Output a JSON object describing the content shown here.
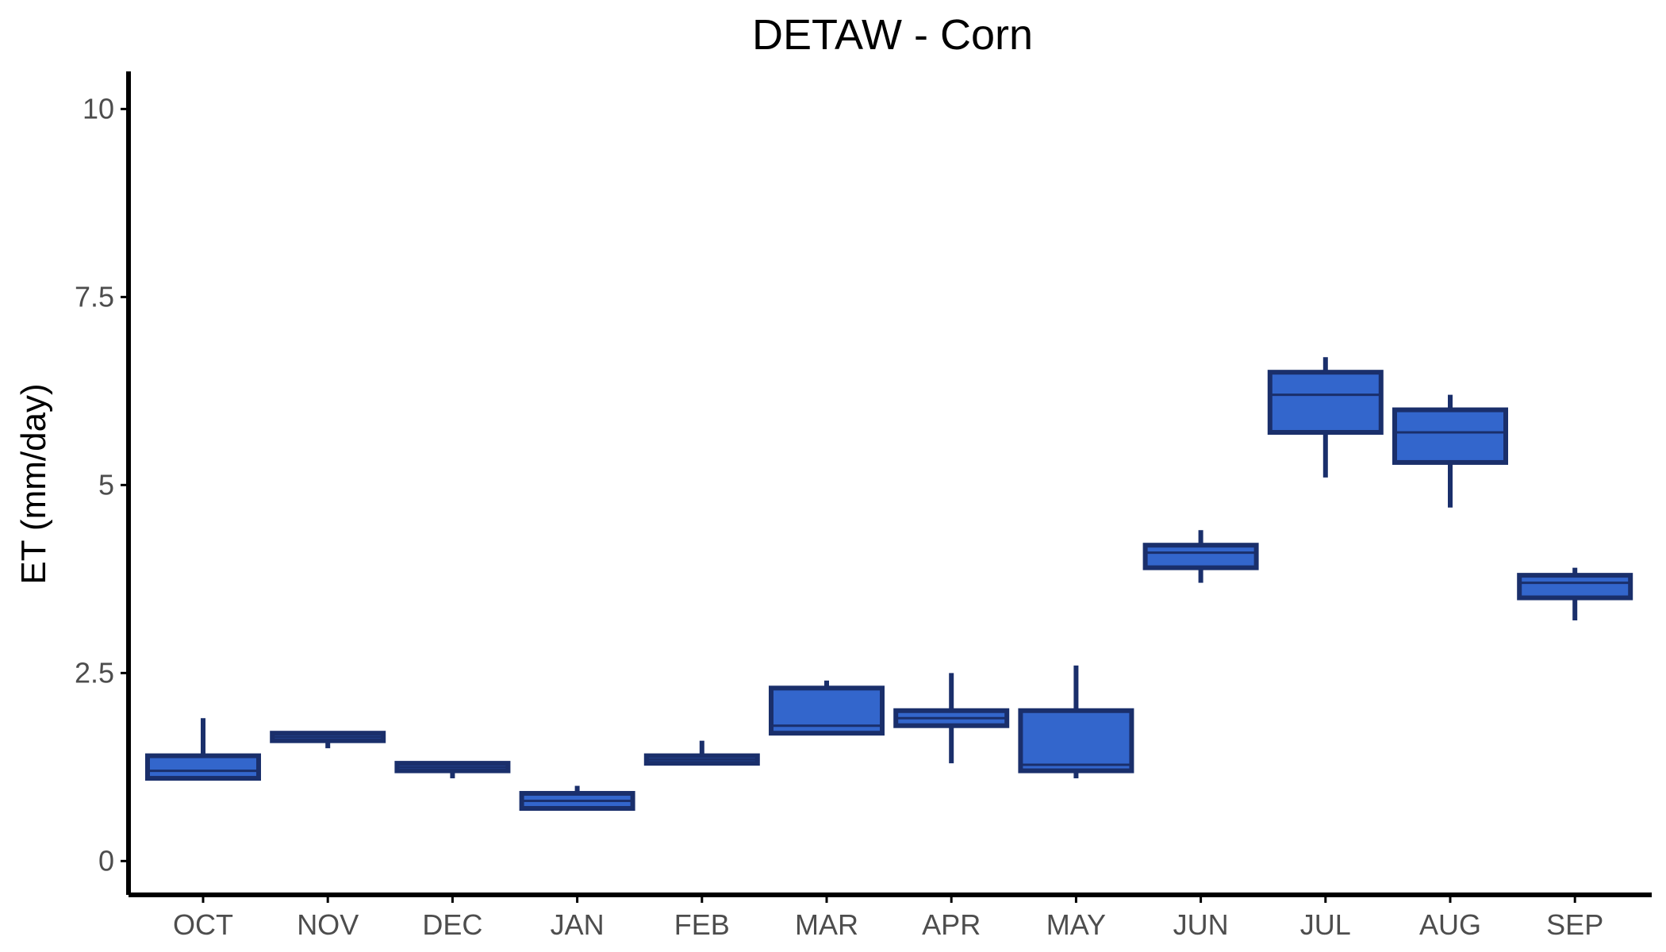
{
  "chart_data": {
    "type": "box",
    "title": "DETAW - Corn",
    "xlabel": "",
    "ylabel": "ET (mm/day)",
    "ylim": [
      -0.45,
      10.5
    ],
    "yticks": [
      {
        "value": 0,
        "label": "0"
      },
      {
        "value": 2.5,
        "label": "2.5"
      },
      {
        "value": 5,
        "label": "5"
      },
      {
        "value": 7.5,
        "label": "7.5"
      },
      {
        "value": 10,
        "label": "10"
      }
    ],
    "grid": false,
    "legend": "none",
    "colors": {
      "box_fill": "#3366cc",
      "box_stroke": "#1a2f6b",
      "axis": "#000000",
      "tick_text": "#4d4d4d"
    },
    "categories": [
      "OCT",
      "NOV",
      "DEC",
      "JAN",
      "FEB",
      "MAR",
      "APR",
      "MAY",
      "JUN",
      "JUL",
      "AUG",
      "SEP"
    ],
    "boxes": [
      {
        "category": "OCT",
        "min": 1.1,
        "q1": 1.1,
        "median": 1.2,
        "q3": 1.4,
        "max": 1.9
      },
      {
        "category": "NOV",
        "min": 1.5,
        "q1": 1.6,
        "median": 1.65,
        "q3": 1.7,
        "max": 1.7
      },
      {
        "category": "DEC",
        "min": 1.1,
        "q1": 1.2,
        "median": 1.25,
        "q3": 1.3,
        "max": 1.3
      },
      {
        "category": "JAN",
        "min": 0.7,
        "q1": 0.7,
        "median": 0.8,
        "q3": 0.9,
        "max": 1.0
      },
      {
        "category": "FEB",
        "min": 1.3,
        "q1": 1.3,
        "median": 1.35,
        "q3": 1.4,
        "max": 1.6
      },
      {
        "category": "MAR",
        "min": 1.7,
        "q1": 1.7,
        "median": 1.8,
        "q3": 2.3,
        "max": 2.4
      },
      {
        "category": "APR",
        "min": 1.3,
        "q1": 1.8,
        "median": 1.9,
        "q3": 2.0,
        "max": 2.5
      },
      {
        "category": "MAY",
        "min": 1.1,
        "q1": 1.2,
        "median": 1.28,
        "q3": 2.0,
        "max": 2.6
      },
      {
        "category": "JUN",
        "min": 3.7,
        "q1": 3.9,
        "median": 4.1,
        "q3": 4.2,
        "max": 4.4
      },
      {
        "category": "JUL",
        "min": 5.1,
        "q1": 5.7,
        "median": 6.2,
        "q3": 6.5,
        "max": 6.7
      },
      {
        "category": "AUG",
        "min": 4.7,
        "q1": 5.3,
        "median": 5.7,
        "q3": 6.0,
        "max": 6.2
      },
      {
        "category": "SEP",
        "min": 3.2,
        "q1": 3.5,
        "median": 3.7,
        "q3": 3.8,
        "max": 3.9
      }
    ]
  }
}
